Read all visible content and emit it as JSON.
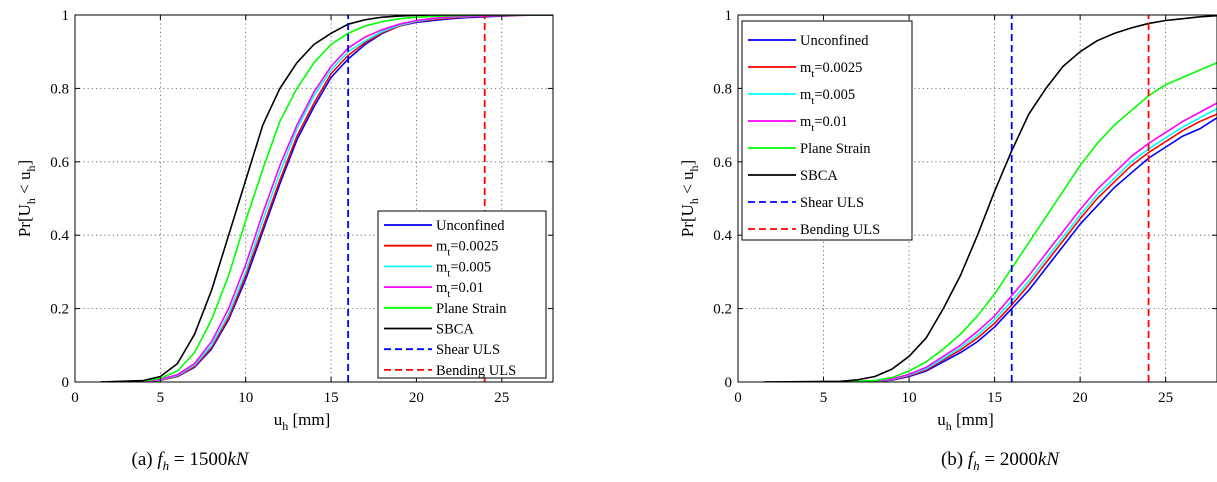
{
  "chart_data": [
    {
      "type": "line",
      "xlabel": "u",
      "xlabel_sub": "h",
      "xlabel_unit": "[mm]",
      "ylabel": "Pr[U",
      "ylabel_sub1": "h",
      "ylabel_mid": " < u",
      "ylabel_sub2": "h",
      "ylabel_end": "]",
      "xlim": [
        0,
        28
      ],
      "ylim": [
        0,
        1
      ],
      "xticks": [
        "0",
        "5",
        "10",
        "15",
        "20",
        "25"
      ],
      "yticks": [
        "0",
        "0.2",
        "0.4",
        "0.6",
        "0.8",
        "1"
      ],
      "grid": true,
      "legend_position": "bottom-right",
      "caption": {
        "prefix": "(a)",
        "var": "f",
        "sub": "h",
        "eq": " = 1500",
        "unit": "kN"
      },
      "series": [
        {
          "name": "Unconfined",
          "color": "#0000ff",
          "dashed": false,
          "x": [
            1.5,
            4,
            5,
            6,
            7,
            8,
            9,
            10,
            11,
            12,
            13,
            14,
            15,
            16,
            17,
            18,
            19,
            20,
            21,
            22,
            23,
            24,
            25,
            26,
            28
          ],
          "y": [
            0,
            0.002,
            0.005,
            0.015,
            0.04,
            0.09,
            0.17,
            0.28,
            0.41,
            0.54,
            0.66,
            0.75,
            0.83,
            0.88,
            0.92,
            0.95,
            0.97,
            0.98,
            0.985,
            0.99,
            0.993,
            0.995,
            0.997,
            0.999,
            1
          ]
        },
        {
          "name": "m",
          "name_sub": "t",
          "name_rest": "=0.0025",
          "color": "#ff0000",
          "dashed": false,
          "x": [
            1.5,
            4,
            5,
            6,
            7,
            8,
            9,
            10,
            11,
            12,
            13,
            14,
            15,
            16,
            17,
            18,
            19,
            20,
            21,
            22,
            23,
            24,
            25,
            26,
            28
          ],
          "y": [
            0,
            0.002,
            0.005,
            0.016,
            0.042,
            0.094,
            0.175,
            0.29,
            0.42,
            0.55,
            0.67,
            0.76,
            0.84,
            0.89,
            0.925,
            0.952,
            0.97,
            0.982,
            0.988,
            0.992,
            0.995,
            0.997,
            0.998,
            0.999,
            1
          ]
        },
        {
          "name": "m",
          "name_sub": "t",
          "name_rest": "=0.005",
          "color": "#00ffff",
          "dashed": false,
          "x": [
            1.5,
            4,
            5,
            6,
            7,
            8,
            9,
            10,
            11,
            12,
            13,
            14,
            15,
            16,
            17,
            18,
            19,
            20,
            21,
            22,
            23,
            24,
            25,
            26,
            28
          ],
          "y": [
            0,
            0.002,
            0.006,
            0.018,
            0.046,
            0.1,
            0.185,
            0.3,
            0.44,
            0.57,
            0.69,
            0.78,
            0.85,
            0.9,
            0.93,
            0.955,
            0.972,
            0.983,
            0.99,
            0.994,
            0.996,
            0.998,
            0.999,
            1,
            1
          ]
        },
        {
          "name": "m",
          "name_sub": "t",
          "name_rest": "=0.01",
          "color": "#ff00ff",
          "dashed": false,
          "x": [
            1.5,
            4,
            5,
            6,
            7,
            8,
            9,
            10,
            11,
            12,
            13,
            14,
            15,
            16,
            17,
            18,
            19,
            20,
            21,
            22,
            23,
            24,
            25,
            26,
            28
          ],
          "y": [
            0,
            0.002,
            0.007,
            0.02,
            0.05,
            0.11,
            0.2,
            0.32,
            0.46,
            0.59,
            0.7,
            0.79,
            0.86,
            0.91,
            0.94,
            0.96,
            0.975,
            0.985,
            0.991,
            0.995,
            0.997,
            0.998,
            0.999,
            1,
            1
          ]
        },
        {
          "name": "Plane Strain",
          "color": "#00ff00",
          "dashed": false,
          "x": [
            1.5,
            4,
            5,
            6,
            7,
            8,
            9,
            10,
            11,
            12,
            13,
            14,
            15,
            16,
            17,
            18,
            19,
            20,
            21,
            22,
            23,
            24,
            25,
            26,
            28
          ],
          "y": [
            0,
            0.003,
            0.01,
            0.03,
            0.08,
            0.17,
            0.29,
            0.44,
            0.58,
            0.71,
            0.8,
            0.87,
            0.92,
            0.95,
            0.97,
            0.982,
            0.99,
            0.994,
            0.996,
            0.998,
            0.999,
            1,
            1,
            1,
            1
          ]
        },
        {
          "name": "SBCA",
          "color": "#000000",
          "dashed": false,
          "x": [
            1.5,
            4,
            5,
            6,
            7,
            8,
            9,
            10,
            11,
            12,
            13,
            14,
            15,
            16,
            17,
            18,
            19,
            20,
            21,
            22,
            23,
            24,
            25,
            26,
            28
          ],
          "y": [
            0,
            0.004,
            0.015,
            0.05,
            0.13,
            0.25,
            0.4,
            0.55,
            0.7,
            0.8,
            0.87,
            0.92,
            0.95,
            0.975,
            0.987,
            0.994,
            0.997,
            0.999,
            1,
            1,
            1,
            1,
            1,
            1,
            1
          ]
        },
        {
          "name": "Shear ULS",
          "color": "#0000ff",
          "dashed": true,
          "x": [
            16,
            16
          ],
          "y": [
            0,
            1
          ]
        },
        {
          "name": "Bending ULS",
          "color": "#ff0000",
          "dashed": true,
          "x": [
            24,
            24
          ],
          "y": [
            0,
            1
          ]
        }
      ]
    },
    {
      "type": "line",
      "xlabel": "u",
      "xlabel_sub": "h",
      "xlabel_unit": "[mm]",
      "ylabel": "Pr[U",
      "ylabel_sub1": "h",
      "ylabel_mid": " < u",
      "ylabel_sub2": "h",
      "ylabel_end": "]",
      "xlim": [
        0,
        28
      ],
      "ylim": [
        0,
        1
      ],
      "xticks": [
        "0",
        "5",
        "10",
        "15",
        "20",
        "25"
      ],
      "yticks": [
        "0",
        "0.2",
        "0.4",
        "0.6",
        "0.8",
        "1"
      ],
      "grid": true,
      "legend_position": "top-left",
      "caption": {
        "prefix": "(b)",
        "var": "f",
        "sub": "h",
        "eq": " = 2000",
        "unit": "kN"
      },
      "series": [
        {
          "name": "Unconfined",
          "color": "#0000ff",
          "dashed": false,
          "x": [
            1.5,
            6,
            8,
            9,
            10,
            11,
            12,
            13,
            14,
            15,
            16,
            17,
            18,
            19,
            20,
            21,
            22,
            23,
            24,
            25,
            26,
            27,
            28
          ],
          "y": [
            0,
            0,
            0.002,
            0.005,
            0.015,
            0.03,
            0.055,
            0.08,
            0.11,
            0.15,
            0.2,
            0.25,
            0.31,
            0.37,
            0.43,
            0.48,
            0.53,
            0.57,
            0.61,
            0.64,
            0.67,
            0.69,
            0.72
          ]
        },
        {
          "name": "m",
          "name_sub": "t",
          "name_rest": "=0.0025",
          "color": "#ff0000",
          "dashed": false,
          "x": [
            1.5,
            6,
            8,
            9,
            10,
            11,
            12,
            13,
            14,
            15,
            16,
            17,
            18,
            19,
            20,
            21,
            22,
            23,
            24,
            25,
            26,
            27,
            28
          ],
          "y": [
            0,
            0,
            0.002,
            0.006,
            0.017,
            0.033,
            0.06,
            0.087,
            0.12,
            0.16,
            0.21,
            0.265,
            0.325,
            0.385,
            0.445,
            0.5,
            0.545,
            0.59,
            0.625,
            0.655,
            0.685,
            0.71,
            0.73
          ]
        },
        {
          "name": "m",
          "name_sub": "t",
          "name_rest": "=0.005",
          "color": "#00ffff",
          "dashed": false,
          "x": [
            1.5,
            6,
            8,
            9,
            10,
            11,
            12,
            13,
            14,
            15,
            16,
            17,
            18,
            19,
            20,
            21,
            22,
            23,
            24,
            25,
            26,
            27,
            28
          ],
          "y": [
            0,
            0,
            0.002,
            0.007,
            0.019,
            0.036,
            0.064,
            0.093,
            0.128,
            0.17,
            0.22,
            0.275,
            0.335,
            0.395,
            0.455,
            0.51,
            0.555,
            0.6,
            0.635,
            0.665,
            0.695,
            0.72,
            0.745
          ]
        },
        {
          "name": "m",
          "name_sub": "t",
          "name_rest": "=0.01",
          "color": "#ff00ff",
          "dashed": false,
          "x": [
            1.5,
            6,
            8,
            9,
            10,
            11,
            12,
            13,
            14,
            15,
            16,
            17,
            18,
            19,
            20,
            21,
            22,
            23,
            24,
            25,
            26,
            27,
            28
          ],
          "y": [
            0,
            0,
            0.003,
            0.008,
            0.021,
            0.04,
            0.07,
            0.1,
            0.138,
            0.18,
            0.235,
            0.29,
            0.35,
            0.41,
            0.47,
            0.525,
            0.57,
            0.615,
            0.65,
            0.68,
            0.71,
            0.735,
            0.76
          ]
        },
        {
          "name": "Plane Strain",
          "color": "#00ff00",
          "dashed": false,
          "x": [
            1.5,
            6,
            8,
            9,
            10,
            11,
            12,
            13,
            14,
            15,
            16,
            17,
            18,
            19,
            20,
            21,
            22,
            23,
            24,
            25,
            26,
            27,
            28
          ],
          "y": [
            0,
            0,
            0.004,
            0.012,
            0.03,
            0.055,
            0.09,
            0.13,
            0.18,
            0.24,
            0.31,
            0.38,
            0.45,
            0.52,
            0.59,
            0.65,
            0.7,
            0.74,
            0.78,
            0.81,
            0.83,
            0.85,
            0.87
          ]
        },
        {
          "name": "SBCA",
          "color": "#000000",
          "dashed": false,
          "x": [
            1.5,
            6,
            7,
            8,
            9,
            10,
            11,
            12,
            13,
            14,
            15,
            16,
            17,
            18,
            19,
            20,
            21,
            22,
            23,
            24,
            25,
            26,
            27,
            28
          ],
          "y": [
            0,
            0.002,
            0.006,
            0.015,
            0.035,
            0.07,
            0.12,
            0.2,
            0.29,
            0.4,
            0.52,
            0.63,
            0.73,
            0.8,
            0.86,
            0.9,
            0.93,
            0.95,
            0.965,
            0.977,
            0.985,
            0.99,
            0.995,
            0.998
          ]
        },
        {
          "name": "Shear ULS",
          "color": "#0000ff",
          "dashed": true,
          "x": [
            16,
            16
          ],
          "y": [
            0,
            1
          ]
        },
        {
          "name": "Bending ULS",
          "color": "#ff0000",
          "dashed": true,
          "x": [
            24,
            24
          ],
          "y": [
            0,
            1
          ]
        }
      ]
    }
  ]
}
